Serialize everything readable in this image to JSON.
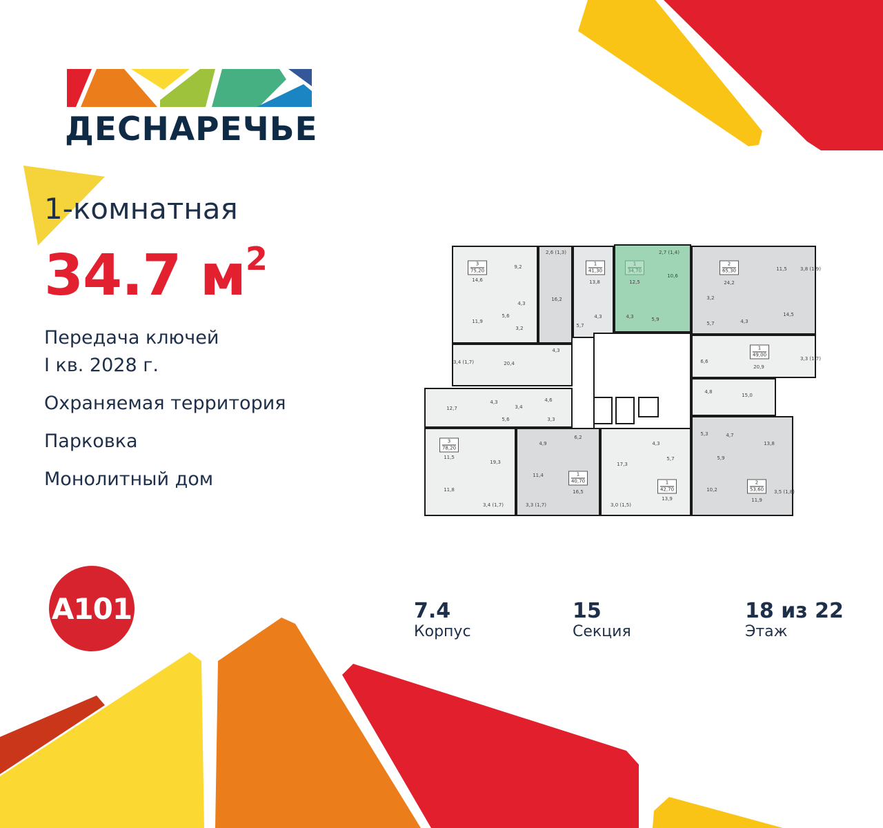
{
  "brand": {
    "logo_text": "ДЕСНАРЕЧЬЕ",
    "developer_logo": "A101"
  },
  "listing": {
    "rooms": "1-комнатная",
    "area": "34.7 м",
    "area_sup": "2",
    "handover_line1": "Передача ключей",
    "handover_line2": "I кв. 2028 г.",
    "features": [
      "Охраняемая территория",
      "Парковка",
      "Монолитный дом"
    ]
  },
  "stats": [
    {
      "value": "7.4",
      "label": "Корпус"
    },
    {
      "value": "15",
      "label": "Секция"
    },
    {
      "value": "18 из 22",
      "label": "Этаж"
    }
  ],
  "colors": {
    "accent_red": "#e3202f",
    "text_navy": "#1e2f4a",
    "selected_apartment": "#9fd4b4",
    "yellow": "#f9c416",
    "orange": "#e97b1c"
  },
  "floor_plan": {
    "apartments": [
      {
        "rooms": "3",
        "area": "75,20"
      },
      {
        "rooms": "1",
        "area": "41,30"
      },
      {
        "rooms": "1",
        "area": "34,70",
        "selected": true
      },
      {
        "rooms": "2",
        "area": "65,30"
      },
      {
        "rooms": "1",
        "area": "49,00"
      },
      {
        "rooms": "3",
        "area": "78,20"
      },
      {
        "rooms": "1",
        "area": "40,70"
      },
      {
        "rooms": "1",
        "area": "42,70"
      },
      {
        "rooms": "2",
        "area": "53,60"
      }
    ],
    "room_labels": [
      "14,6",
      "9,2",
      "4,3",
      "5,6",
      "11,9",
      "3,2",
      "16,2",
      "2,6 (1,3)",
      "13,8",
      "4,3",
      "5,7",
      "12,5",
      "10,6",
      "4,3",
      "5,9",
      "2,7 (1,4)",
      "3,4 (1,7)",
      "20,4",
      "4,3",
      "24,2",
      "11,5",
      "3,8 (1,9)",
      "3,2",
      "14,5",
      "5,7",
      "4,3",
      "20,9",
      "6,6",
      "3,3 (1,7)",
      "12,7",
      "4,3",
      "3,4",
      "4,6",
      "5,6",
      "3,3",
      "11,5",
      "19,3",
      "4,9",
      "6,2",
      "11,4",
      "16,5",
      "11,8",
      "3,4 (1,7)",
      "3,3 (1,7)",
      "17,3",
      "4,3",
      "5,7",
      "3,0 (1,5)",
      "13,9",
      "4,8",
      "15,0",
      "5,3",
      "4,7",
      "13,8",
      "5,9",
      "10,2",
      "11,9",
      "3,5 (1,8)"
    ]
  }
}
